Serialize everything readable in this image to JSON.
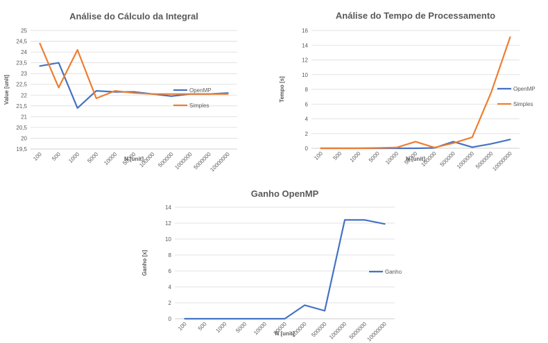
{
  "chart_data": [
    {
      "type": "line",
      "title": "Análise do Cálculo da Integral",
      "xlabel": "N [unit]",
      "ylabel": "Value [unit]",
      "categories": [
        "100",
        "500",
        "1000",
        "5000",
        "10000",
        "50000",
        "100000",
        "500000",
        "1000000",
        "5000000",
        "10000000"
      ],
      "ylim": [
        19.5,
        25
      ],
      "yticks": [
        "19,5",
        "20",
        "20,5",
        "21",
        "21,5",
        "22",
        "22,5",
        "23",
        "23,5",
        "24",
        "24,5",
        "25"
      ],
      "grid": true,
      "legend": "right",
      "series": [
        {
          "name": "OpenMP",
          "color": "#4472c4",
          "values": [
            23.35,
            23.5,
            21.4,
            22.2,
            22.15,
            22.15,
            22.05,
            21.95,
            22.05,
            22.05,
            22.1
          ]
        },
        {
          "name": "Simples",
          "color": "#ed7d31",
          "values": [
            24.4,
            22.35,
            24.1,
            21.85,
            22.2,
            22.1,
            22.05,
            22.05,
            22.05,
            22.05,
            22.05
          ]
        }
      ]
    },
    {
      "type": "line",
      "title": "Análise do Tempo de Processamento",
      "xlabel": "N [unit]",
      "ylabel": "Tempo [s]",
      "categories": [
        "100",
        "500",
        "1000",
        "5000",
        "10000",
        "50000",
        "100000",
        "500000",
        "1000000",
        "5000000",
        "10000000"
      ],
      "ylim": [
        0,
        16
      ],
      "yticks": [
        "0",
        "2",
        "4",
        "6",
        "8",
        "10",
        "12",
        "14",
        "16"
      ],
      "grid": true,
      "legend": "right",
      "series": [
        {
          "name": "OpenMP",
          "color": "#4472c4",
          "values": [
            0,
            0,
            0,
            0,
            0,
            0,
            0.05,
            0.9,
            0.15,
            0.6,
            1.2
          ]
        },
        {
          "name": "Simples",
          "color": "#ed7d31",
          "values": [
            0,
            0,
            0,
            0.05,
            0.1,
            0.9,
            0.1,
            0.7,
            1.5,
            7.6,
            15.1
          ]
        }
      ]
    },
    {
      "type": "line",
      "title": "Ganho OpenMP",
      "xlabel": "N [unit]",
      "ylabel": "Ganho [x]",
      "categories": [
        "100",
        "500",
        "1000",
        "5000",
        "10000",
        "50000",
        "100000",
        "500000",
        "1000000",
        "5000000",
        "10000000"
      ],
      "ylim": [
        0,
        14
      ],
      "yticks": [
        "0",
        "2",
        "4",
        "6",
        "8",
        "10",
        "12",
        "14"
      ],
      "grid": true,
      "legend": "right",
      "series": [
        {
          "name": "Ganho",
          "color": "#4472c4",
          "values": [
            0,
            0,
            0,
            0,
            0,
            0,
            1.7,
            1.0,
            12.4,
            12.4,
            11.9
          ]
        }
      ]
    }
  ]
}
